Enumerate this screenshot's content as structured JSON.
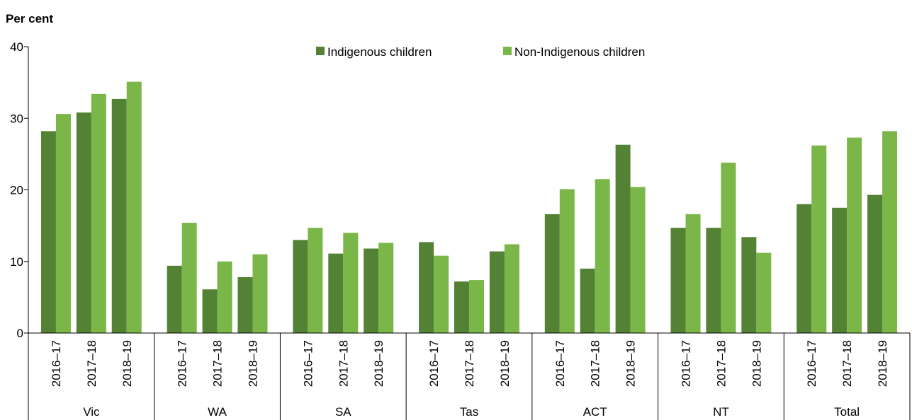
{
  "chart_data": {
    "type": "bar",
    "ylabel": "Per cent",
    "ylim": [
      0,
      40
    ],
    "yticks": [
      0,
      10,
      20,
      30,
      40
    ],
    "grid": false,
    "legend_position": "top",
    "groups": [
      "Vic",
      "WA",
      "SA",
      "Tas",
      "ACT",
      "NT",
      "Total"
    ],
    "periods": [
      "2016–17",
      "2017–18",
      "2018–19"
    ],
    "series": [
      {
        "name": "Indigenous children",
        "color": "#548235",
        "values": [
          [
            28.2,
            30.8,
            32.7
          ],
          [
            9.4,
            6.1,
            7.8
          ],
          [
            13.0,
            11.1,
            11.8
          ],
          [
            12.7,
            7.2,
            11.4
          ],
          [
            16.6,
            9.0,
            26.3
          ],
          [
            14.7,
            14.7,
            13.4
          ],
          [
            18.0,
            17.5,
            19.3
          ]
        ]
      },
      {
        "name": "Non-Indigenous children",
        "color": "#7ab648",
        "values": [
          [
            30.6,
            33.4,
            35.1
          ],
          [
            15.4,
            10.0,
            11.0
          ],
          [
            14.7,
            14.0,
            12.6
          ],
          [
            10.8,
            7.4,
            12.4
          ],
          [
            20.1,
            21.5,
            20.4
          ],
          [
            16.6,
            23.8,
            11.2
          ],
          [
            26.2,
            27.3,
            28.2
          ]
        ]
      }
    ]
  }
}
